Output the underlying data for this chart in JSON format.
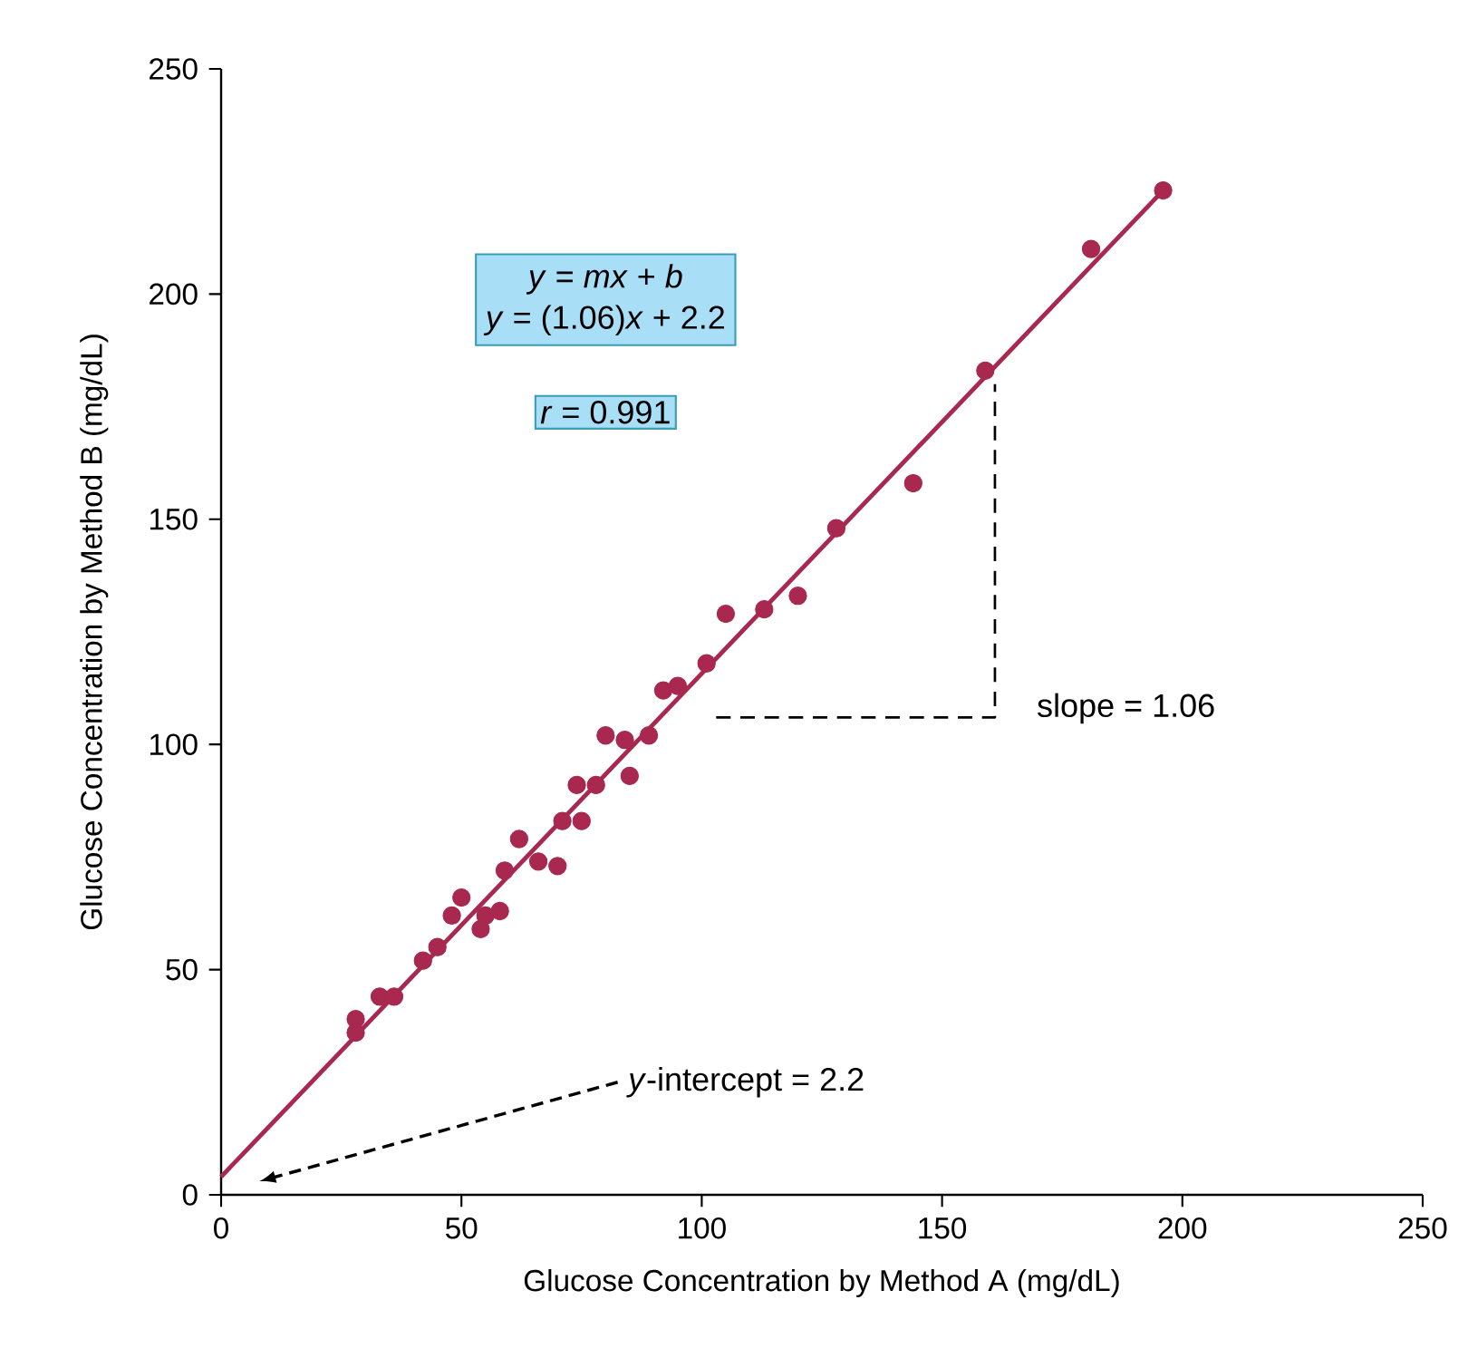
{
  "chart_data": {
    "type": "scatter",
    "xlabel": "Glucose Concentration by Method A (mg/dL)",
    "ylabel": "Glucose Concentration by Method B (mg/dL)",
    "xlim": [
      0,
      250
    ],
    "ylim": [
      0,
      250
    ],
    "xticks": [
      0,
      50,
      100,
      150,
      200,
      250
    ],
    "yticks": [
      0,
      50,
      100,
      150,
      200,
      250
    ],
    "grid": false,
    "marker": "circle",
    "series": [
      {
        "color": "#a8284f",
        "x": [
          28,
          28,
          33,
          36,
          42,
          45,
          48,
          50,
          54,
          55,
          58,
          59,
          62,
          66,
          70,
          71,
          74,
          75,
          78,
          80,
          84,
          85,
          89,
          92,
          95,
          101,
          105,
          113,
          120,
          128,
          144,
          159,
          181,
          196
        ],
        "values": [
          39,
          36,
          44,
          44,
          52,
          55,
          62,
          66,
          59,
          62,
          63,
          72,
          79,
          74,
          73,
          83,
          91,
          83,
          91,
          102,
          101,
          93,
          102,
          112,
          113,
          118,
          129,
          130,
          133,
          148,
          158,
          183,
          210,
          223
        ]
      },
      {
        "type": "line",
        "color": "#a8284f",
        "x": [
          0,
          196
        ],
        "values": [
          4,
          223
        ],
        "marker": "none"
      },
      {
        "type": "line",
        "color": "#000000",
        "x": [
          103,
          161,
          161
        ],
        "values": [
          106,
          106,
          180
        ],
        "line_style": "dashed",
        "marker": "none"
      }
    ],
    "annotations": [
      "*y* = *mx* + *b*",
      "*y* = (1.06)*x* + 2.2",
      "*r* = 0.991",
      "slope = 1.06",
      "*y*-intercept = 2.2"
    ]
  }
}
